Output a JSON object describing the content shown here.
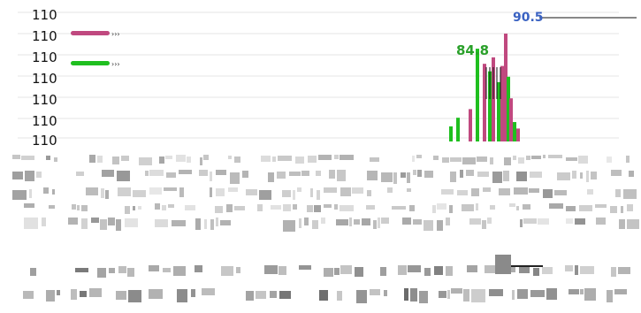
{
  "chart_data": {
    "type": "bar",
    "title": "",
    "xlabel": "",
    "ylabel": "",
    "yticks": [
      "110",
      "110",
      "110",
      "110",
      "110",
      "110",
      "110"
    ],
    "series": [
      {
        "name": "",
        "color": "#c0497f"
      },
      {
        "name": "",
        "color": "#1fbf1f"
      }
    ],
    "annotations": [
      {
        "text": "84.8",
        "color": "#2aa02a"
      },
      {
        "text": "90.5",
        "color": "#3a62c2"
      }
    ],
    "grid": true,
    "legend_position": "top-left",
    "bars": [
      {
        "series": 1,
        "value": 14
      },
      {
        "series": 1,
        "value": 22
      },
      {
        "series": 0,
        "value": 30
      },
      {
        "series": 1,
        "value": 86
      },
      {
        "series": 0,
        "value": 72
      },
      {
        "series": 1,
        "value": 65
      },
      {
        "series": 0,
        "value": 78
      },
      {
        "series": 1,
        "value": 55
      },
      {
        "series": 0,
        "value": 70
      },
      {
        "series": 0,
        "value": 100
      },
      {
        "series": 1,
        "value": 60
      },
      {
        "series": 0,
        "value": 40
      },
      {
        "series": 1,
        "value": 18
      },
      {
        "series": 0,
        "value": 12
      }
    ]
  }
}
